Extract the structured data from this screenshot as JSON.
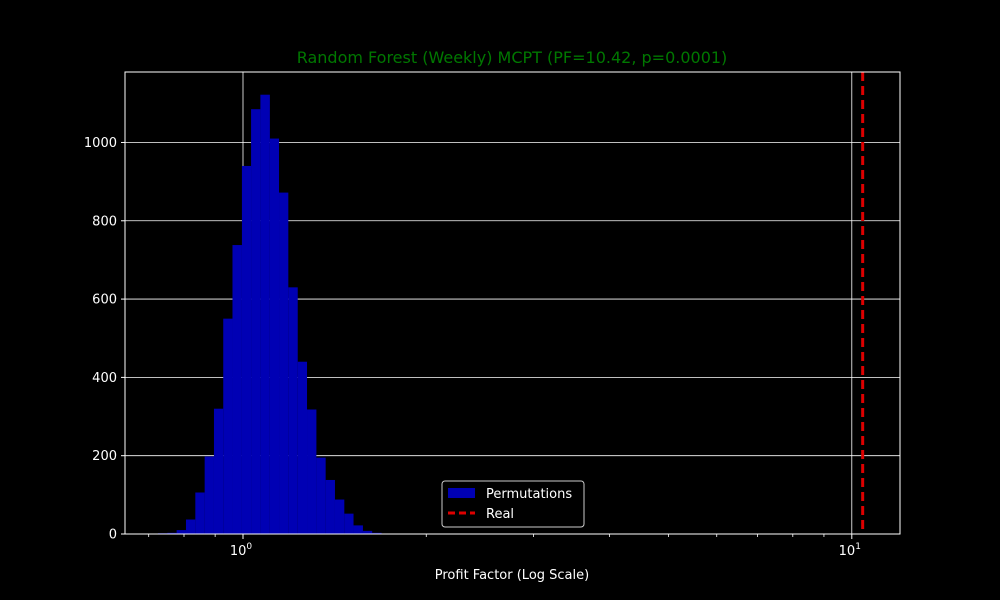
{
  "chart_data": {
    "type": "bar",
    "title": "Random Forest (Weekly) MCPT (PF=10.42, p=0.0001)",
    "xlabel": "Profit Factor (Log Scale)",
    "ylabel": "",
    "xscale": "log",
    "xlim": [
      0.64,
      12.0
    ],
    "ylim": [
      0,
      1180
    ],
    "grid": true,
    "legend_position": "lower center",
    "x_ticks": [
      {
        "value": 1,
        "label": "10^0"
      },
      {
        "value": 10,
        "label": "10^1"
      }
    ],
    "y_ticks": [
      0,
      200,
      400,
      600,
      800,
      1000
    ],
    "colors": {
      "background": "#000000",
      "bars": "#0000b4",
      "real_line": "#dd0000",
      "title": "#007700",
      "text": "#ffffff"
    },
    "series": [
      {
        "name": "Permutations",
        "bins": [
          {
            "x0": 0.7,
            "x1": 0.725,
            "count": 1
          },
          {
            "x0": 0.725,
            "x1": 0.751,
            "count": 2
          },
          {
            "x0": 0.751,
            "x1": 0.778,
            "count": 3
          },
          {
            "x0": 0.778,
            "x1": 0.806,
            "count": 10
          },
          {
            "x0": 0.806,
            "x1": 0.835,
            "count": 37
          },
          {
            "x0": 0.835,
            "x1": 0.865,
            "count": 106
          },
          {
            "x0": 0.865,
            "x1": 0.896,
            "count": 198
          },
          {
            "x0": 0.896,
            "x1": 0.928,
            "count": 320
          },
          {
            "x0": 0.928,
            "x1": 0.961,
            "count": 550
          },
          {
            "x0": 0.961,
            "x1": 0.996,
            "count": 738
          },
          {
            "x0": 0.996,
            "x1": 1.031,
            "count": 940
          },
          {
            "x0": 1.031,
            "x1": 1.068,
            "count": 1085
          },
          {
            "x0": 1.068,
            "x1": 1.107,
            "count": 1122
          },
          {
            "x0": 1.107,
            "x1": 1.146,
            "count": 1010
          },
          {
            "x0": 1.146,
            "x1": 1.187,
            "count": 872
          },
          {
            "x0": 1.187,
            "x1": 1.23,
            "count": 630
          },
          {
            "x0": 1.23,
            "x1": 1.274,
            "count": 440
          },
          {
            "x0": 1.274,
            "x1": 1.32,
            "count": 318
          },
          {
            "x0": 1.32,
            "x1": 1.367,
            "count": 195
          },
          {
            "x0": 1.367,
            "x1": 1.416,
            "count": 138
          },
          {
            "x0": 1.416,
            "x1": 1.467,
            "count": 88
          },
          {
            "x0": 1.467,
            "x1": 1.519,
            "count": 52
          },
          {
            "x0": 1.519,
            "x1": 1.574,
            "count": 22
          },
          {
            "x0": 1.574,
            "x1": 1.63,
            "count": 8
          },
          {
            "x0": 1.63,
            "x1": 1.689,
            "count": 3
          },
          {
            "x0": 1.689,
            "x1": 1.749,
            "count": 1
          }
        ]
      },
      {
        "name": "Real",
        "type": "vline",
        "x": 10.42
      }
    ]
  }
}
